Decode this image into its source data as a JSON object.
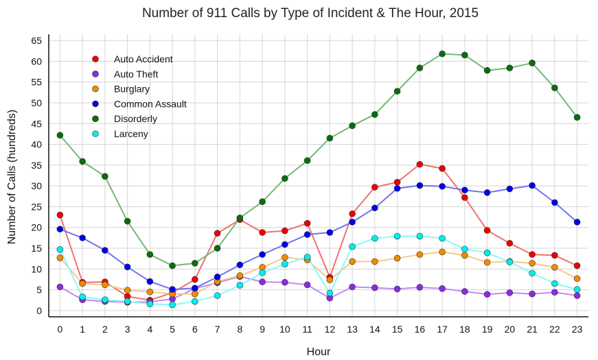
{
  "chart_data": {
    "type": "line",
    "title": "Number of 911 Calls by Type of Incident & The Hour, 2015",
    "xlabel": "Hour",
    "ylabel": "Number of Calls (hundreds)",
    "x": [
      0,
      1,
      2,
      3,
      4,
      5,
      6,
      7,
      8,
      9,
      10,
      11,
      12,
      13,
      14,
      15,
      16,
      17,
      18,
      19,
      20,
      21,
      22,
      23
    ],
    "xlim": [
      -0.5,
      23.5
    ],
    "ylim": [
      -1.5,
      66.5
    ],
    "yticks": [
      0,
      5,
      10,
      15,
      20,
      25,
      30,
      35,
      40,
      45,
      50,
      55,
      60,
      65
    ],
    "grid": true,
    "legend_position": "top-left",
    "series": [
      {
        "name": "Auto Accident",
        "color": "#ee0000",
        "line_color": "#f07070",
        "values": [
          23,
          6.8,
          6.9,
          3.4,
          2.5,
          4.3,
          7.5,
          18.6,
          21.9,
          18.8,
          19.2,
          21,
          8,
          23.3,
          29.7,
          30.9,
          35.2,
          34.2,
          27.2,
          19.3,
          16.2,
          13.5,
          13.3,
          10.8
        ]
      },
      {
        "name": "Auto Theft",
        "color": "#8a2be2",
        "line_color": "#c08af0",
        "values": [
          5.7,
          2.6,
          2.2,
          2,
          2.1,
          2.8,
          5.3,
          6.7,
          8.2,
          6.9,
          6.8,
          6.2,
          3,
          5.7,
          5.5,
          5.2,
          5.6,
          5.3,
          4.6,
          3.9,
          4.3,
          4,
          4.4,
          3.6
        ]
      },
      {
        "name": "Burglary",
        "color": "#f08c00",
        "line_color": "#f8c88c",
        "values": [
          12.7,
          6.5,
          6.2,
          4.9,
          4.5,
          4,
          4,
          7,
          8.4,
          10.4,
          12.8,
          12.2,
          7.4,
          11.8,
          11.8,
          12.6,
          13.5,
          14.1,
          13.3,
          11.6,
          11.8,
          11.4,
          10.4,
          7.7
        ]
      },
      {
        "name": "Common Assault",
        "color": "#0000ee",
        "line_color": "#7272f2",
        "values": [
          19.6,
          17.5,
          14.5,
          10.5,
          7,
          5.1,
          5.4,
          8.1,
          11,
          13.5,
          15.9,
          18.3,
          18.8,
          21.3,
          24.7,
          29.4,
          30.1,
          29.9,
          29,
          28.4,
          29.3,
          30.1,
          26,
          21.3
        ]
      },
      {
        "name": "Disorderly",
        "color": "#0a6e0a",
        "line_color": "#72b872",
        "values": [
          42.2,
          35.9,
          32.3,
          21.5,
          13.5,
          10.8,
          11.4,
          15,
          22.3,
          26.2,
          31.8,
          36.1,
          41.5,
          44.5,
          47.2,
          52.8,
          58.4,
          61.8,
          61.5,
          57.8,
          58.4,
          59.6,
          53.6,
          46.5
        ]
      },
      {
        "name": "Larceny",
        "color": "#00eeee",
        "line_color": "#8cf8f8",
        "values": [
          14.7,
          3.3,
          2.6,
          2.2,
          1.6,
          1.4,
          2.2,
          3.6,
          6.1,
          9.1,
          11.2,
          12.9,
          4.2,
          15.4,
          17.4,
          17.9,
          17.9,
          17.4,
          14.8,
          13.9,
          11.7,
          9,
          6.5,
          5.1
        ]
      }
    ]
  }
}
